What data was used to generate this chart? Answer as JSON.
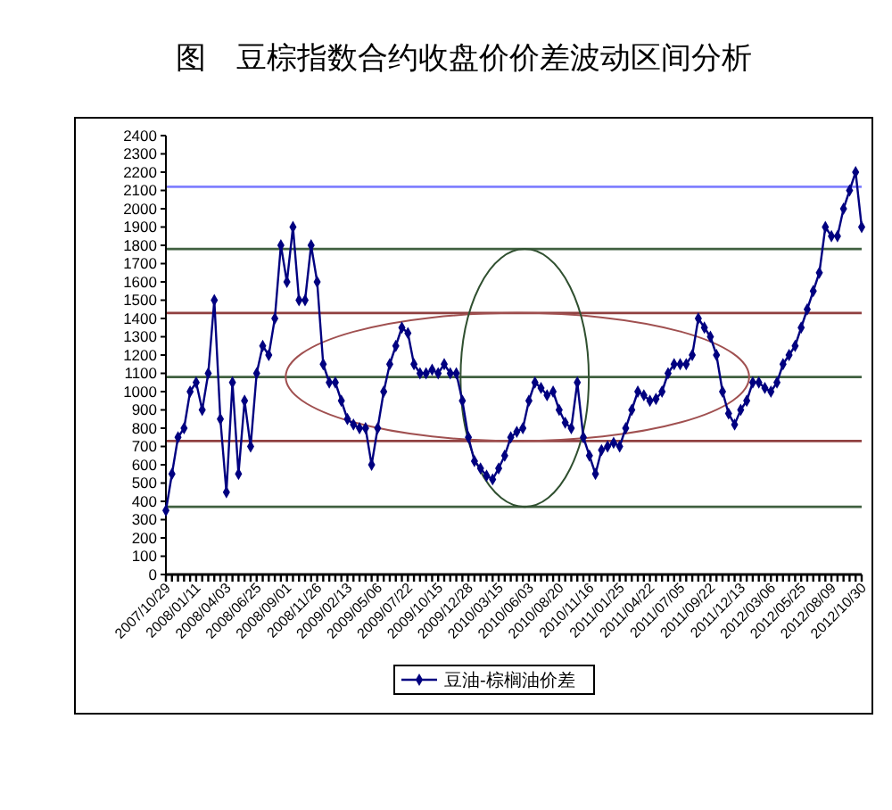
{
  "chart_data": {
    "type": "line",
    "title": "图　豆棕指数合约收盘价价差波动区间分析",
    "categories": [
      "2007/10/29",
      null,
      null,
      null,
      null,
      "2008/01/11",
      null,
      null,
      null,
      null,
      "2008/04/03",
      null,
      null,
      null,
      null,
      "2008/06/25",
      null,
      null,
      null,
      null,
      "2008/09/01",
      null,
      null,
      null,
      null,
      "2008/11/26",
      null,
      null,
      null,
      null,
      "2009/02/13",
      null,
      null,
      null,
      null,
      "2009/05/06",
      null,
      null,
      null,
      null,
      "2009/07/22",
      null,
      null,
      null,
      null,
      "2009/10/15",
      null,
      null,
      null,
      null,
      "2009/12/28",
      null,
      null,
      null,
      null,
      "2010/03/15",
      null,
      null,
      null,
      null,
      "2010/06/03",
      null,
      null,
      null,
      null,
      "2010/08/20",
      null,
      null,
      null,
      null,
      "2010/11/16",
      null,
      null,
      null,
      null,
      "2011/01/25",
      null,
      null,
      null,
      null,
      "2011/04/22",
      null,
      null,
      null,
      null,
      "2011/07/05",
      null,
      null,
      null,
      null,
      "2011/09/22",
      null,
      null,
      null,
      null,
      "2011/12/13",
      null,
      null,
      null,
      null,
      "2012/03/06",
      null,
      null,
      null,
      null,
      "2012/05/25",
      null,
      null,
      null,
      null,
      "2012/08/09",
      null,
      null,
      null,
      null,
      "2012/10/30"
    ],
    "series": [
      {
        "name": "豆油-棕榈油价差",
        "color": "#000080",
        "values": [
          350,
          550,
          750,
          800,
          1000,
          1050,
          900,
          1100,
          1500,
          850,
          450,
          1050,
          550,
          950,
          700,
          1100,
          1250,
          1200,
          1400,
          1800,
          1600,
          1900,
          1500,
          1500,
          1800,
          1600,
          1150,
          1050,
          1050,
          950,
          850,
          820,
          800,
          800,
          600,
          800,
          1000,
          1150,
          1250,
          1350,
          1320,
          1150,
          1100,
          1100,
          1120,
          1100,
          1150,
          1100,
          1100,
          950,
          750,
          620,
          580,
          540,
          520,
          580,
          650,
          750,
          780,
          800,
          950,
          1050,
          1020,
          980,
          1000,
          900,
          830,
          800,
          1050,
          750,
          650,
          550,
          680,
          700,
          720,
          700,
          800,
          900,
          1000,
          980,
          950,
          960,
          1000,
          1100,
          1150,
          1150,
          1150,
          1200,
          1400,
          1350,
          1300,
          1200,
          1000,
          880,
          820,
          900,
          950,
          1050,
          1050,
          1020,
          1000,
          1050,
          1150,
          1200,
          1250,
          1350,
          1450,
          1550,
          1650,
          1900,
          1850,
          1850,
          2000,
          2100,
          2200,
          1900
        ]
      }
    ],
    "ylim": [
      0,
      2400
    ],
    "yticks": [
      0,
      100,
      200,
      300,
      400,
      500,
      600,
      700,
      800,
      900,
      1000,
      1100,
      1200,
      1300,
      1400,
      1500,
      1600,
      1700,
      1800,
      1900,
      2000,
      2100,
      2200,
      2300,
      2400
    ],
    "ref_lines": [
      {
        "axis": "y",
        "value": 2120,
        "color": "#8080ff"
      },
      {
        "axis": "y",
        "value": 1780,
        "color": "#406040"
      },
      {
        "axis": "y",
        "value": 1430,
        "color": "#904040"
      },
      {
        "axis": "y",
        "value": 1080,
        "color": "#406040"
      },
      {
        "axis": "y",
        "value": 730,
        "color": "#904040"
      },
      {
        "axis": "y",
        "value": 370,
        "color": "#406040"
      }
    ],
    "marker": "diamond",
    "line_style": "solid",
    "legend": "bottom",
    "grid": false
  }
}
